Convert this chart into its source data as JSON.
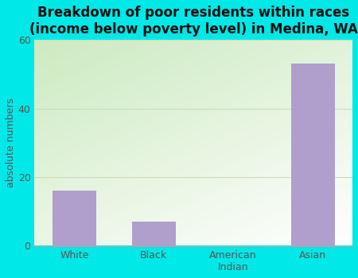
{
  "categories": [
    "White",
    "Black",
    "American\nIndian",
    "Asian"
  ],
  "values": [
    16,
    7,
    0,
    53
  ],
  "bar_color": "#b09fcc",
  "title_line1": "Breakdown of poor residents within races",
  "title_line2": "(income below poverty level) in Medina, WA",
  "ylabel": "absolute numbers",
  "ylim": [
    0,
    60
  ],
  "yticks": [
    0,
    20,
    40,
    60
  ],
  "bg_outer": "#00e8e8",
  "bg_plot_topleft": "#d4edcf",
  "bg_plot_topright": "#e8f5ff",
  "bg_plot_bottom": "#c8eac0",
  "title_fontsize": 12,
  "axis_label_fontsize": 9,
  "tick_fontsize": 9,
  "grid_color": "#ddeecc"
}
